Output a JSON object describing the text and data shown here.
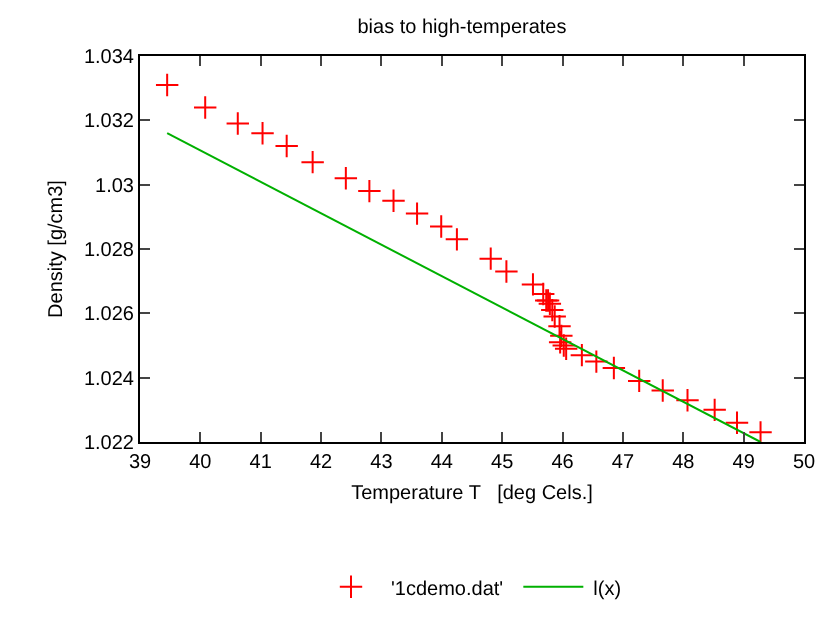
{
  "chart_data": {
    "type": "scatter",
    "title": "bias to high-temperates",
    "xlabel": "Temperature T   [deg Cels.]",
    "ylabel": "Density [g/cm3]",
    "xlim": [
      39,
      50
    ],
    "xticks": [
      39,
      40,
      41,
      42,
      43,
      44,
      45,
      46,
      47,
      48,
      49,
      50
    ],
    "ylim": [
      1.022,
      1.034
    ],
    "yticks": [
      1.022,
      1.024,
      1.026,
      1.028,
      {
        "value": 1.03,
        "label": "1.03"
      },
      1.032,
      1.034
    ],
    "grid": false,
    "legend": "bottom",
    "marker": "cross",
    "series": [
      {
        "name": "'1cdemo.dat'",
        "color": "#ff0000",
        "x": [
          39.45,
          40.08,
          40.62,
          41.03,
          41.43,
          41.86,
          42.41,
          42.8,
          43.2,
          43.59,
          43.99,
          44.25,
          44.81,
          45.07,
          45.51,
          45.68,
          45.73,
          45.76,
          45.79,
          45.83,
          45.87,
          45.95,
          45.98,
          45.96,
          46.02,
          46.06,
          46.32,
          46.56,
          46.85,
          47.27,
          47.66,
          48.07,
          48.52,
          48.89,
          49.28
        ],
        "values": [
          1.0331,
          1.0324,
          1.0319,
          1.0316,
          1.0312,
          1.0307,
          1.0302,
          1.0298,
          1.0295,
          1.0291,
          1.0287,
          1.0283,
          1.0277,
          1.0273,
          1.0269,
          1.0266,
          1.0264,
          1.0264,
          1.0263,
          1.0261,
          1.0259,
          1.0256,
          1.0253,
          1.0251,
          1.025,
          1.0249,
          1.0247,
          1.0245,
          1.0243,
          1.0239,
          1.0236,
          1.0233,
          1.023,
          1.0226,
          1.0223
        ]
      },
      {
        "name": "l(x)",
        "type": "line",
        "color": "#00b000",
        "line_style": "solid",
        "marker": "none",
        "x": [
          39.45,
          49.28
        ],
        "values": [
          1.0316,
          1.022
        ]
      }
    ]
  }
}
